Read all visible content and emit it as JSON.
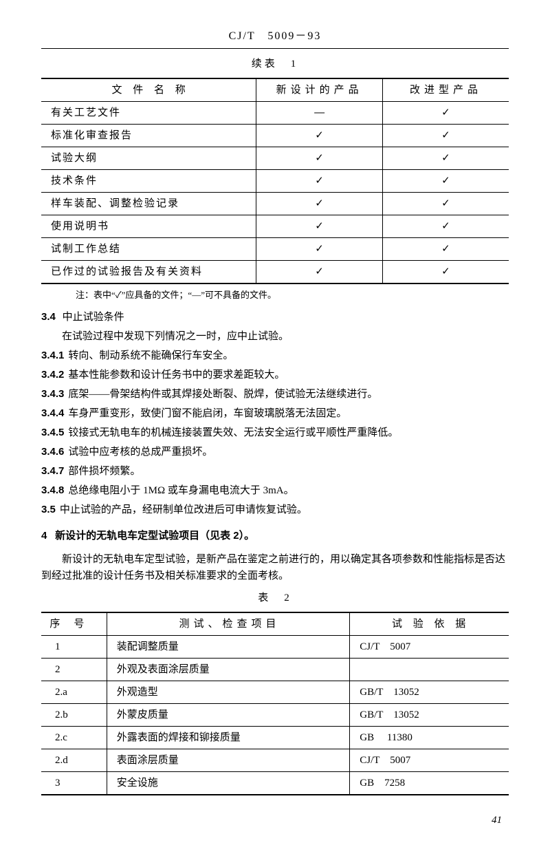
{
  "header": "CJ/T　5009－93",
  "table1": {
    "title": "续表　1",
    "headers": [
      "文 件 名 称",
      "新设计的产品",
      "改进型产品"
    ],
    "rows": [
      [
        "有关工艺文件",
        "—",
        "✓"
      ],
      [
        "标准化审查报告",
        "✓",
        "✓"
      ],
      [
        "试验大纲",
        "✓",
        "✓"
      ],
      [
        "技术条件",
        "✓",
        "✓"
      ],
      [
        "样车装配、调整检验记录",
        "✓",
        "✓"
      ],
      [
        "使用说明书",
        "✓",
        "✓"
      ],
      [
        "试制工作总结",
        "✓",
        "✓"
      ],
      [
        "已作过的试验报告及有关资料",
        "✓",
        "✓"
      ]
    ],
    "note": "注：表中“✓”应具备的文件；“—”可不具备的文件。"
  },
  "sec34": {
    "num": "3.4",
    "title": "中止试验条件",
    "lead": "在试验过程中发现下列情况之一时，应中止试验。",
    "items": [
      {
        "n": "3.4.1",
        "t": "转向、制动系统不能确保行车安全。"
      },
      {
        "n": "3.4.2",
        "t": "基本性能参数和设计任务书中的要求差距较大。"
      },
      {
        "n": "3.4.3",
        "t": "底架——骨架结构件或其焊接处断裂、脱焊，使试验无法继续进行。"
      },
      {
        "n": "3.4.4",
        "t": "车身严重变形，致使门窗不能启闭，车窗玻璃脱落无法固定。"
      },
      {
        "n": "3.4.5",
        "t": "铰接式无轨电车的机械连接装置失效、无法安全运行或平顺性严重降低。"
      },
      {
        "n": "3.4.6",
        "t": "试验中应考核的总成严重损坏。"
      },
      {
        "n": "3.4.7",
        "t": "部件损坏频繁。"
      },
      {
        "n": "3.4.8",
        "t": "总绝缘电阻小于 1MΩ 或车身漏电电流大于 3mA。"
      }
    ]
  },
  "sec35": {
    "n": "3.5",
    "t": "中止试验的产品，经研制单位改进后可申请恢复试验。"
  },
  "sec4": {
    "num": "4",
    "title": "新设计的无轨电车定型试验项目（见表 2）。",
    "para": "新设计的无轨电车定型试验，是新产品在鉴定之前进行的，用以确定其各项参数和性能指标是否达到经过批准的设计任务书及相关标准要求的全面考核。"
  },
  "table2": {
    "title": "表　2",
    "headers": [
      "序号",
      "测试、检查项目",
      "试 验 依 据"
    ],
    "rows": [
      [
        "1",
        "装配调整质量",
        "CJ/T　5007"
      ],
      [
        "2",
        "外观及表面涂层质量",
        ""
      ],
      [
        "2.a",
        "外观造型",
        "GB/T　13052"
      ],
      [
        "2.b",
        "外蒙皮质量",
        "GB/T　13052"
      ],
      [
        "2.c",
        "外露表面的焊接和铆接质量",
        "GB　 11380"
      ],
      [
        "2.d",
        "表面涂层质量",
        "CJ/T　5007"
      ],
      [
        "3",
        "安全设施",
        "GB　7258"
      ]
    ]
  },
  "pagenum": "41"
}
